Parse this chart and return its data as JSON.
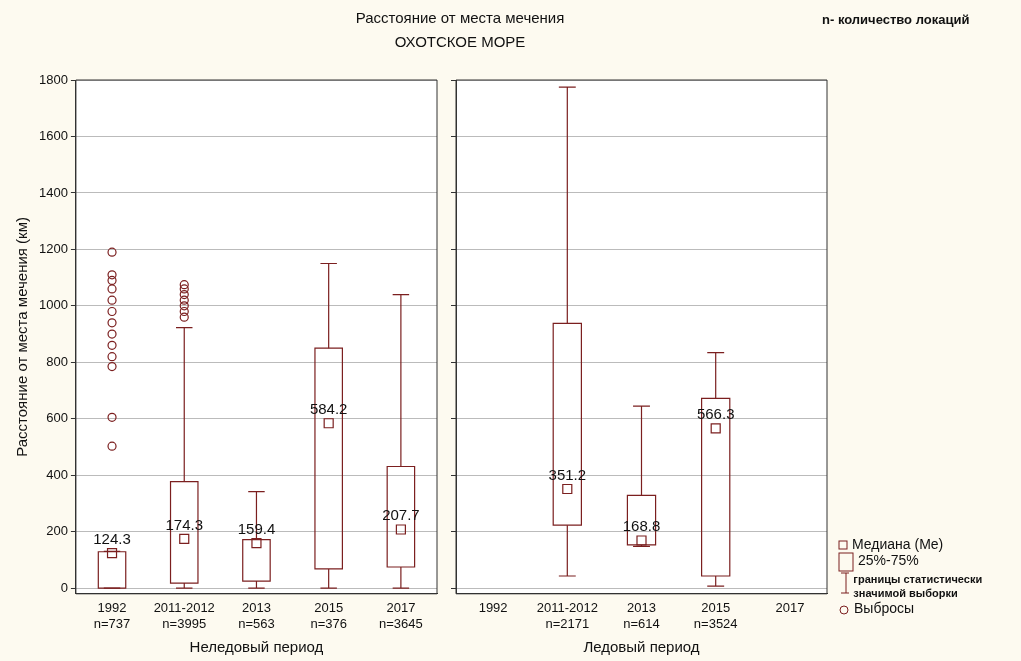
{
  "chart_data": [
    {
      "type": "box",
      "title": "Расстояние от места мечения",
      "subtitle": "ОХОТСКОЕ МОРЕ",
      "ylabel": "Расстояние от места мечения (км)",
      "xlabel": "Неледовый период",
      "color": "#7b1f1f",
      "categories": [
        "1992\nn=737",
        "2011-2012\nn=3995",
        "2013\nn=563",
        "2015\nn=376",
        "2017\nn=3645"
      ],
      "boxes": [
        {
          "low": 0,
          "q1": 0,
          "median": 124.3,
          "q3": 129,
          "high": 130,
          "outliers": [
            503,
            605,
            785,
            820,
            860,
            900,
            940,
            980,
            1020,
            1060,
            1090,
            1110,
            1190
          ]
        },
        {
          "low": 0,
          "q1": 18,
          "median": 174.3,
          "q3": 377,
          "high": 923,
          "outliers": [
            960,
            980,
            1000,
            1020,
            1040,
            1060,
            1075
          ]
        },
        {
          "low": 0,
          "q1": 25,
          "median": 159.4,
          "q3": 172,
          "high": 342
        },
        {
          "low": 0,
          "q1": 68,
          "median": 584.2,
          "q3": 850,
          "high": 1150
        },
        {
          "low": 0,
          "q1": 75,
          "median": 207.7,
          "q3": 431,
          "high": 1040
        }
      ],
      "annotations": [
        {
          "text": "124.3",
          "x": "1992\nn=737",
          "y": 124.3
        },
        {
          "text": "174.3",
          "x": "2011-2012\nn=3995",
          "y": 174.3
        },
        {
          "text": "159.4",
          "x": "2013\nn=563",
          "y": 159.4
        },
        {
          "text": "584.2",
          "x": "2015\nn=376",
          "y": 584.2
        },
        {
          "text": "207.7",
          "x": "2017\nn=3645",
          "y": 207.7
        }
      ],
      "ylim": [
        -20,
        1800
      ],
      "yticks": [
        0,
        200,
        400,
        600,
        800,
        1000,
        1200,
        1400,
        1600,
        1800
      ],
      "grid": "y"
    },
    {
      "type": "box",
      "xlabel": "Ледовый период",
      "color": "#7b1f1f",
      "categories": [
        "1992",
        "2011-2012\nn=2171",
        "2013\nn=614",
        "2015\nn=3524",
        "2017"
      ],
      "boxes": [
        null,
        {
          "low": 43,
          "q1": 223,
          "median": 351.2,
          "q3": 938,
          "high": 1775
        },
        {
          "low": 148,
          "q1": 153,
          "median": 168.8,
          "q3": 329,
          "high": 645
        },
        {
          "low": 7,
          "q1": 43,
          "median": 566.3,
          "q3": 672,
          "high": 834
        },
        null
      ],
      "ylim": [
        -20,
        1800
      ],
      "yticks": [
        0,
        200,
        400,
        600,
        800,
        1000,
        1200,
        1400,
        1600,
        1800
      ],
      "grid": "y",
      "tick_labels": "x",
      "annotations": [
        "n- количество локаций",
        "Медиана (Me)",
        "25%-75%",
        "границы статистически значимой выборки",
        "Выбросы",
        {
          "text": "351.2",
          "x": "2011-2012\nn=2171",
          "y": 351.2
        },
        {
          "text": "168.8",
          "x": "2013\nn=614",
          "y": 168.8
        },
        {
          "text": "566.3",
          "x": "2015\nn=3524",
          "y": 566.3
        }
      ]
    }
  ]
}
